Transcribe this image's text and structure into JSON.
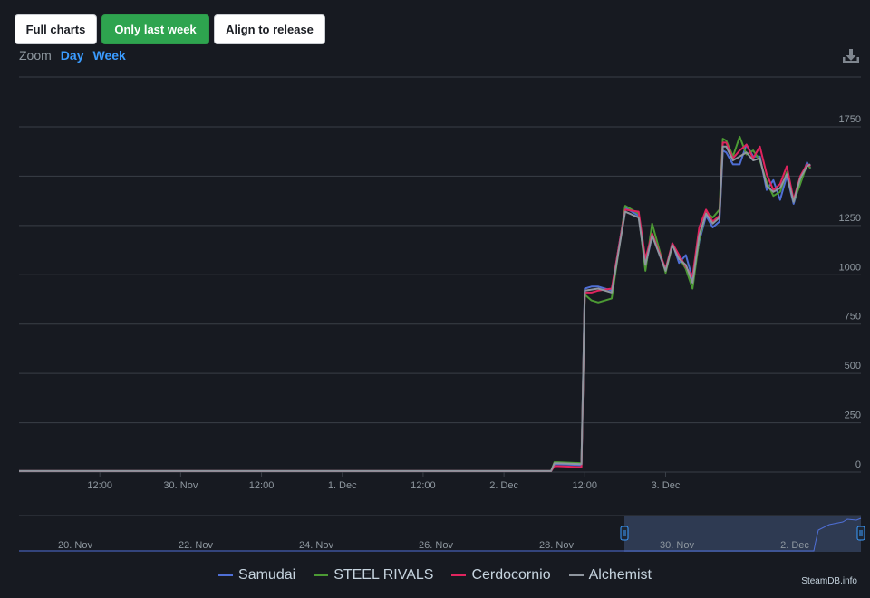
{
  "toolbar": {
    "full_charts": "Full charts",
    "only_last_week": "Only last week",
    "align_to_release": "Align to release"
  },
  "zoom": {
    "label": "Zoom",
    "day": "Day",
    "week": "Week"
  },
  "credit": "SteamDB.info",
  "colors": {
    "background": "#171a21",
    "grid": "#3a3f47",
    "accent": "#2ea44f",
    "link": "#3b9cff"
  },
  "chart_data": {
    "type": "line",
    "x_unit": "hours",
    "xlim": [
      0,
      125
    ],
    "ylim": [
      0,
      1750
    ],
    "y_ticks": [
      0,
      250,
      500,
      750,
      1000,
      1250,
      1750
    ],
    "grid": true,
    "legend_position": "bottom",
    "x_ticks": [
      {
        "x": 12,
        "label": "12:00"
      },
      {
        "x": 24,
        "label": "30. Nov"
      },
      {
        "x": 36,
        "label": "12:00"
      },
      {
        "x": 48,
        "label": "1. Dec"
      },
      {
        "x": 60,
        "label": "12:00"
      },
      {
        "x": 72,
        "label": "2. Dec"
      },
      {
        "x": 84,
        "label": "12:00"
      },
      {
        "x": 96,
        "label": "3. Dec"
      }
    ],
    "series": [
      {
        "name": "Samudai",
        "color": "#4f6fd6",
        "x": [
          0,
          20,
          40,
          60,
          79,
          79.5,
          80,
          83.5,
          84,
          85,
          86,
          88,
          90,
          92,
          93,
          94,
          96,
          97,
          98,
          99,
          100,
          101,
          102,
          103,
          104,
          104.5,
          105,
          106,
          107,
          108,
          109,
          110,
          111,
          112,
          113,
          114,
          115,
          116,
          117,
          117.5
        ],
        "y": [
          5,
          5,
          5,
          5,
          5,
          40,
          40,
          35,
          930,
          940,
          940,
          920,
          1340,
          1300,
          1040,
          1200,
          1020,
          1160,
          1060,
          1100,
          980,
          1170,
          1300,
          1240,
          1270,
          1630,
          1620,
          1560,
          1560,
          1660,
          1600,
          1600,
          1430,
          1480,
          1380,
          1500,
          1360,
          1470,
          1570,
          1540
        ]
      },
      {
        "name": "STEEL RIVALS",
        "color": "#4c9a34",
        "x": [
          0,
          20,
          40,
          60,
          79,
          79.5,
          80,
          83.5,
          84,
          85,
          86,
          88,
          90,
          92,
          93,
          94,
          96,
          97,
          98,
          99,
          100,
          101,
          102,
          103,
          104,
          104.5,
          105,
          106,
          107,
          108,
          109,
          110,
          111,
          112,
          113,
          114,
          115,
          116,
          117,
          117.5
        ],
        "y": [
          5,
          5,
          5,
          5,
          5,
          50,
          50,
          45,
          900,
          870,
          860,
          880,
          1350,
          1310,
          1020,
          1260,
          1010,
          1150,
          1090,
          1030,
          930,
          1180,
          1320,
          1290,
          1330,
          1690,
          1680,
          1600,
          1700,
          1610,
          1630,
          1580,
          1470,
          1400,
          1420,
          1520,
          1370,
          1460,
          1560,
          1540
        ]
      },
      {
        "name": "Cerdocornio",
        "color": "#e0245e",
        "x": [
          0,
          20,
          40,
          60,
          79,
          79.5,
          80,
          83.5,
          84,
          85,
          86,
          88,
          90,
          92,
          93,
          94,
          96,
          97,
          98,
          99,
          100,
          101,
          102,
          103,
          104,
          104.5,
          105,
          106,
          107,
          108,
          109,
          110,
          111,
          112,
          113,
          114,
          115,
          116,
          117,
          117.5
        ],
        "y": [
          5,
          5,
          5,
          5,
          5,
          30,
          30,
          25,
          910,
          910,
          920,
          930,
          1330,
          1320,
          1080,
          1210,
          1030,
          1160,
          1100,
          1040,
          990,
          1240,
          1330,
          1270,
          1300,
          1670,
          1670,
          1590,
          1630,
          1660,
          1590,
          1650,
          1510,
          1430,
          1460,
          1550,
          1380,
          1500,
          1560,
          1550
        ]
      },
      {
        "name": "Alchemist",
        "color": "#8e959e",
        "x": [
          0,
          20,
          40,
          60,
          79,
          79.5,
          80,
          83.5,
          84,
          85,
          86,
          88,
          90,
          92,
          93,
          94,
          96,
          97,
          98,
          99,
          100,
          101,
          102,
          103,
          104,
          104.5,
          105,
          106,
          107,
          108,
          109,
          110,
          111,
          112,
          113,
          114,
          115,
          116,
          117,
          117.5
        ],
        "y": [
          5,
          5,
          5,
          5,
          5,
          45,
          45,
          40,
          920,
          925,
          930,
          910,
          1320,
          1290,
          1050,
          1200,
          1020,
          1150,
          1080,
          1050,
          960,
          1200,
          1310,
          1260,
          1290,
          1650,
          1650,
          1580,
          1600,
          1620,
          1580,
          1590,
          1450,
          1420,
          1440,
          1510,
          1370,
          1490,
          1550,
          1560
        ]
      }
    ],
    "navigator": {
      "x_ticks": [
        "20. Nov",
        "22. Nov",
        "24. Nov",
        "26. Nov",
        "28. Nov",
        "30. Nov",
        "2. Dec"
      ]
    }
  }
}
